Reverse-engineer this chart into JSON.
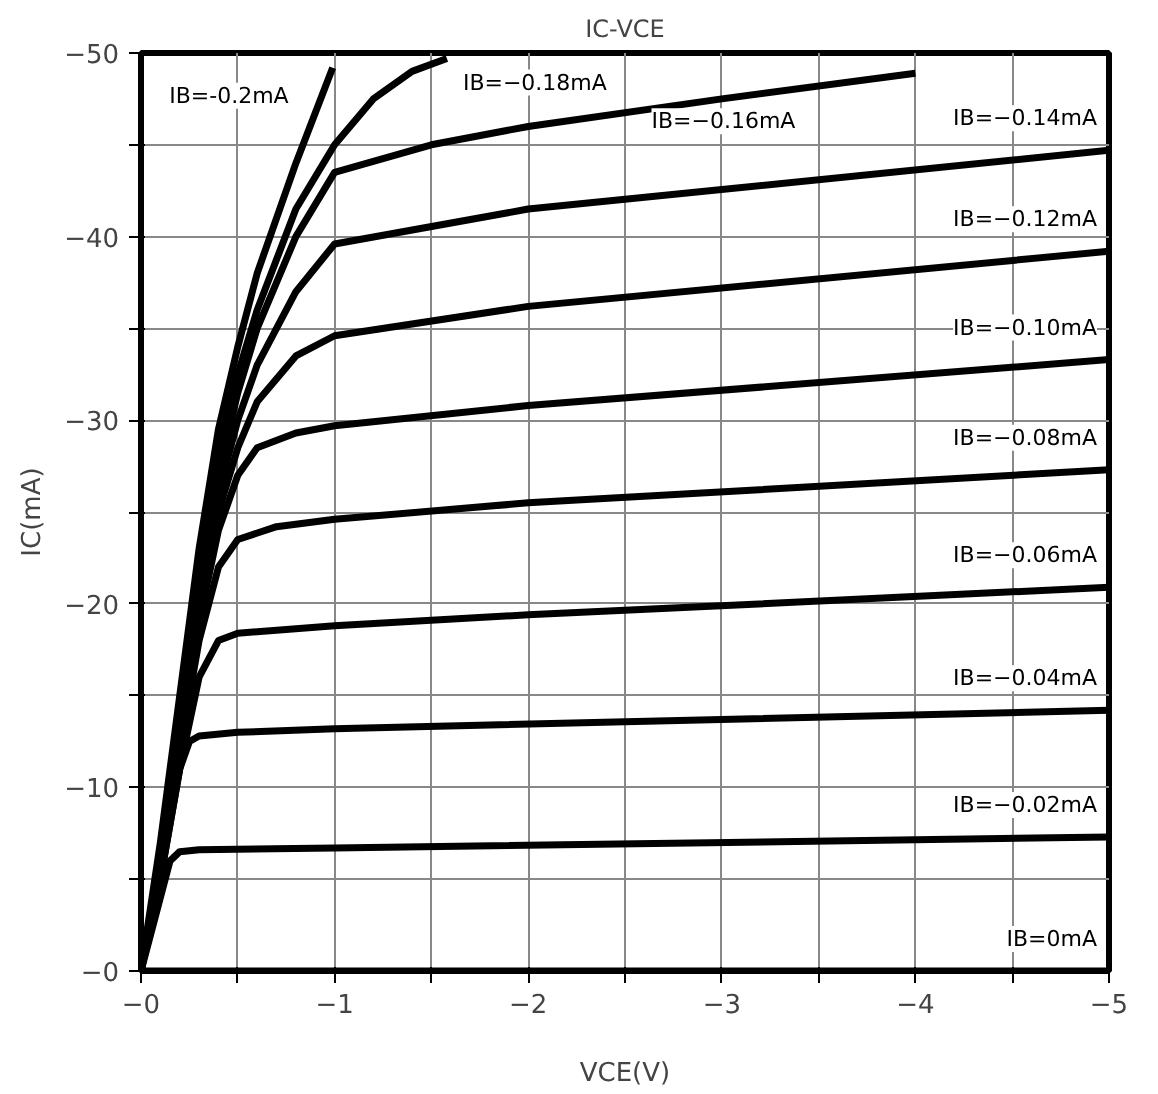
{
  "chart_data": {
    "type": "line",
    "title": "IC-VCE",
    "xlabel": "VCE(V)",
    "ylabel": "IC(mA)",
    "xlim": [
      0,
      -5
    ],
    "ylim": [
      0,
      -50
    ],
    "xticks": [
      {
        "value": 0,
        "label": "−0"
      },
      {
        "value": -0.5,
        "label": null
      },
      {
        "value": -1,
        "label": "−1"
      },
      {
        "value": -1.5,
        "label": null
      },
      {
        "value": -2,
        "label": "−2"
      },
      {
        "value": -2.5,
        "label": null
      },
      {
        "value": -3,
        "label": "−3"
      },
      {
        "value": -3.5,
        "label": null
      },
      {
        "value": -4,
        "label": "−4"
      },
      {
        "value": -4.5,
        "label": null
      },
      {
        "value": -5,
        "label": "−5"
      }
    ],
    "yticks": [
      {
        "value": 0,
        "label": "−0"
      },
      {
        "value": -5,
        "label": null
      },
      {
        "value": -10,
        "label": "−10"
      },
      {
        "value": -15,
        "label": null
      },
      {
        "value": -20,
        "label": "−20"
      },
      {
        "value": -25,
        "label": null
      },
      {
        "value": -30,
        "label": "−30"
      },
      {
        "value": -35,
        "label": null
      },
      {
        "value": -40,
        "label": "−40"
      },
      {
        "value": -45,
        "label": null
      },
      {
        "value": -50,
        "label": "−50"
      }
    ],
    "grid": true,
    "marker": "none",
    "line_style": "solid",
    "series": [
      {
        "name": "IB=0mA",
        "color": "#000000",
        "x": [
          0,
          -5
        ],
        "values": [
          0,
          0
        ]
      },
      {
        "name": "IB=−0.02mA",
        "color": "#000000",
        "x": [
          0,
          -0.1,
          -0.15,
          -0.2,
          -0.3,
          -1,
          -5
        ],
        "values": [
          0,
          -4,
          -6,
          -6.5,
          -6.6,
          -6.7,
          -7.3
        ]
      },
      {
        "name": "IB=−0.04mA",
        "color": "#000000",
        "x": [
          0,
          -0.1,
          -0.2,
          -0.25,
          -0.3,
          -0.5,
          -1,
          -5
        ],
        "values": [
          0,
          -5,
          -11,
          -12.5,
          -12.8,
          -13,
          -13.2,
          -14.2
        ]
      },
      {
        "name": "IB=−0.06mA",
        "color": "#000000",
        "x": [
          0,
          -0.1,
          -0.2,
          -0.3,
          -0.4,
          -0.5,
          -1,
          -2,
          -5
        ],
        "values": [
          0,
          -5,
          -11,
          -16,
          -18,
          -18.4,
          -18.8,
          -19.4,
          -20.9
        ]
      },
      {
        "name": "IB=−0.08mA",
        "color": "#000000",
        "x": [
          0,
          -0.1,
          -0.2,
          -0.3,
          -0.4,
          -0.5,
          -0.7,
          -1,
          -2,
          -5
        ],
        "values": [
          0,
          -5.5,
          -12,
          -18,
          -22,
          -23.5,
          -24.2,
          -24.6,
          -25.5,
          -27.3
        ]
      },
      {
        "name": "IB=−0.10mA",
        "color": "#000000",
        "x": [
          0,
          -0.1,
          -0.2,
          -0.3,
          -0.4,
          -0.5,
          -0.6,
          -0.8,
          -1,
          -2,
          -5
        ],
        "values": [
          0,
          -6,
          -13,
          -19,
          -24,
          -27,
          -28.5,
          -29.3,
          -29.7,
          -30.8,
          -33.3
        ]
      },
      {
        "name": "IB=−0.12mA",
        "color": "#000000",
        "x": [
          0,
          -0.1,
          -0.2,
          -0.3,
          -0.4,
          -0.5,
          -0.6,
          -0.8,
          -1,
          -2,
          -5
        ],
        "values": [
          0,
          -6,
          -13,
          -20,
          -25,
          -28.5,
          -31,
          -33.5,
          -34.6,
          -36.2,
          -39.2
        ]
      },
      {
        "name": "IB=−0.14mA",
        "color": "#000000",
        "x": [
          0,
          -0.1,
          -0.2,
          -0.3,
          -0.4,
          -0.5,
          -0.6,
          -0.8,
          -1,
          -2,
          -5
        ],
        "values": [
          0,
          -6,
          -13.5,
          -21,
          -26,
          -30,
          -33,
          -37,
          -39.6,
          -41.5,
          -44.7
        ]
      },
      {
        "name": "IB=−0.16mA",
        "color": "#000000",
        "x": [
          0,
          -0.1,
          -0.2,
          -0.3,
          -0.4,
          -0.5,
          -0.6,
          -0.8,
          -1,
          -1.5,
          -2,
          -3,
          -4
        ],
        "values": [
          0,
          -6,
          -14,
          -21.5,
          -27,
          -31.5,
          -35,
          -40,
          -43.5,
          -45,
          -46,
          -47.5,
          -48.9
        ]
      },
      {
        "name": "IB=−0.18mA",
        "color": "#000000",
        "x": [
          0,
          -0.1,
          -0.2,
          -0.3,
          -0.4,
          -0.5,
          -0.6,
          -0.8,
          -1,
          -1.2,
          -1.4,
          -1.58
        ],
        "values": [
          0,
          -6.5,
          -14.5,
          -22,
          -28,
          -32.5,
          -36,
          -41.5,
          -45,
          -47.5,
          -49,
          -49.7
        ]
      },
      {
        "name": "IB=-0.2mA",
        "color": "#000000",
        "x": [
          0,
          -0.1,
          -0.2,
          -0.3,
          -0.4,
          -0.5,
          -0.6,
          -0.8,
          -0.99
        ],
        "values": [
          0,
          -7,
          -15,
          -23,
          -29.5,
          -34,
          -38,
          -44,
          -49.2
        ]
      }
    ]
  }
}
